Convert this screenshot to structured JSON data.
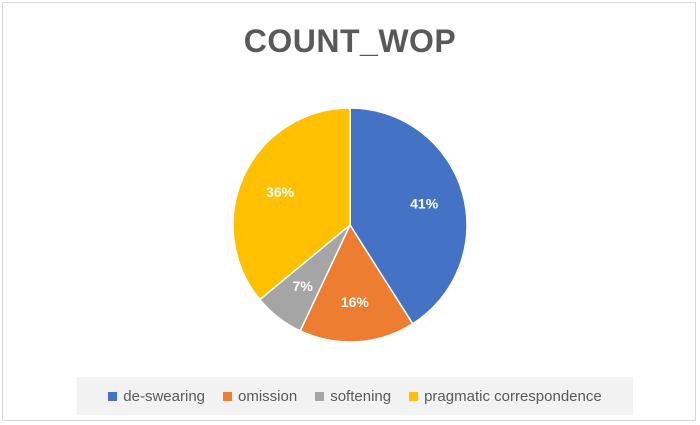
{
  "chart_data": {
    "type": "pie",
    "title": "COUNT_WOP",
    "categories": [
      "de-swearing",
      "omission",
      "softening",
      "pragmatic correspondence"
    ],
    "values": [
      41,
      16,
      7,
      36
    ],
    "labels": [
      "41%",
      "16%",
      "7%",
      "36%"
    ],
    "colors": [
      "#4472c4",
      "#ed7d31",
      "#a5a5a5",
      "#ffc000"
    ],
    "legend_position": "bottom"
  }
}
